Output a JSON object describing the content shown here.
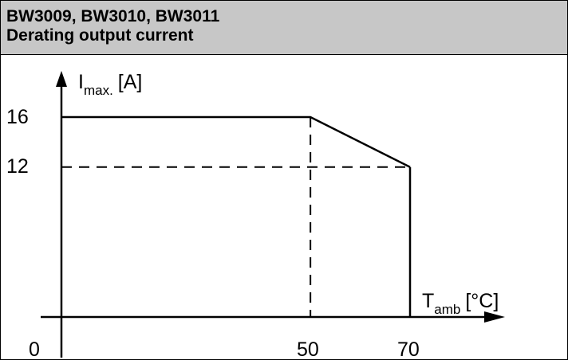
{
  "header": {
    "line1": "BW3009, BW3010, BW3011",
    "line2": "Derating output current"
  },
  "chart_data": {
    "type": "line",
    "ylabel_main": "I",
    "ylabel_sub": "max.",
    "ylabel_unit": "[A]",
    "xlabel_main": "T",
    "xlabel_sub": "amb",
    "xlabel_unit": "[°C]",
    "xticks": [
      "0",
      "50",
      "70"
    ],
    "yticks": [
      "16",
      "12"
    ],
    "series": [
      {
        "x": [
          0,
          50,
          70
        ],
        "y": [
          16,
          16,
          12
        ]
      }
    ],
    "drop_line": {
      "x": 70,
      "from": 12,
      "to": 0
    },
    "reference_lines": [
      {
        "orientation": "vertical",
        "x": 50,
        "from": 0,
        "to": 16,
        "style": "dashed"
      },
      {
        "orientation": "horizontal",
        "y": 12,
        "from": 0,
        "to": 70,
        "style": "dashed"
      }
    ],
    "xlim": [
      0,
      70
    ],
    "ylim": [
      0,
      16
    ]
  }
}
